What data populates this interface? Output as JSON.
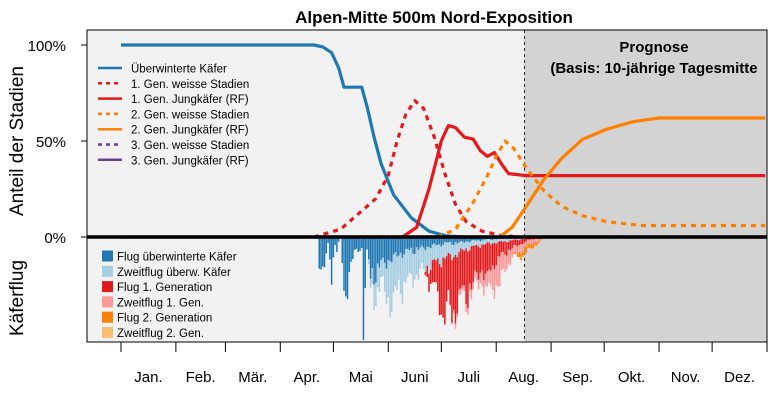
{
  "chart_data": {
    "type": "line",
    "title": "Alpen-Mitte 500m Nord-Exposition",
    "ylabel": "Anteil der Stadien",
    "ylabel_lower": "Käferflug",
    "yticks": [
      "100%",
      "50%",
      "0%"
    ],
    "ylim": [
      0,
      100
    ],
    "months": [
      "Jan.",
      "Feb.",
      "Mär.",
      "Apr.",
      "Mai",
      "Juni",
      "Juli",
      "Aug.",
      "Sep.",
      "Okt.",
      "Nov.",
      "Dez."
    ],
    "forecast_start_day": 229,
    "forecast_label_1": "Prognose",
    "forecast_label_2": "(Basis: 10-jährige Tagesmitte",
    "colors": {
      "overwintered": "#1f78b4",
      "overwintered_light": "#a6cee3",
      "gen1": "#e31a1c",
      "gen1_light": "#fb9a99",
      "gen2": "#ff7f00",
      "gen2_light": "#fdbf6f",
      "gen3": "#6a3d9a",
      "forecast_bg": "#d3d3d3",
      "plot_bg": "#f2f2f2"
    },
    "legend_lines": [
      {
        "label": "Überwinterte Käfer",
        "color": "#1f78b4",
        "dash": false
      },
      {
        "label": "1. Gen. weisse Stadien",
        "color": "#e31a1c",
        "dash": true
      },
      {
        "label": "1. Gen. Jungkäfer (RF)",
        "color": "#e31a1c",
        "dash": false
      },
      {
        "label": "2. Gen. weisse Stadien",
        "color": "#ff7f00",
        "dash": true
      },
      {
        "label": "2. Gen. Jungkäfer (RF)",
        "color": "#ff7f00",
        "dash": false
      },
      {
        "label": "3. Gen. weisse Stadien",
        "color": "#6a3d9a",
        "dash": true
      },
      {
        "label": "3. Gen. Jungkäfer (RF)",
        "color": "#6a3d9a",
        "dash": false
      }
    ],
    "legend_flight": [
      {
        "label": "Flug überwinterte Käfer",
        "color": "#1f78b4"
      },
      {
        "label": "Zweitflug überw. Käfer",
        "color": "#a6cee3"
      },
      {
        "label": "Flug 1. Generation",
        "color": "#e31a1c"
      },
      {
        "label": "Zweitflug 1. Gen.",
        "color": "#fb9a99"
      },
      {
        "label": "Flug 2. Generation",
        "color": "#ff7f00"
      },
      {
        "label": "Zweitflug 2. Gen.",
        "color": "#fdbf6f"
      }
    ],
    "series": [
      {
        "name": "Überwinterte Käfer",
        "dash": false,
        "color": "#1f78b4",
        "points": [
          [
            1,
            100
          ],
          [
            110,
            100
          ],
          [
            115,
            99
          ],
          [
            120,
            96
          ],
          [
            124,
            88
          ],
          [
            127,
            78
          ],
          [
            137,
            78
          ],
          [
            140,
            68
          ],
          [
            144,
            52
          ],
          [
            148,
            38
          ],
          [
            155,
            22
          ],
          [
            165,
            10
          ],
          [
            175,
            3
          ],
          [
            185,
            0.5
          ],
          [
            195,
            0
          ]
        ]
      },
      {
        "name": "1. Gen. weisse Stadien",
        "dash": true,
        "color": "#e31a1c",
        "points": [
          [
            110,
            0
          ],
          [
            125,
            4
          ],
          [
            135,
            12
          ],
          [
            145,
            20
          ],
          [
            152,
            32
          ],
          [
            157,
            50
          ],
          [
            162,
            64
          ],
          [
            167,
            71
          ],
          [
            172,
            67
          ],
          [
            178,
            52
          ],
          [
            184,
            33
          ],
          [
            190,
            17
          ],
          [
            196,
            8
          ],
          [
            205,
            3
          ],
          [
            215,
            1
          ],
          [
            225,
            0
          ]
        ]
      },
      {
        "name": "1. Gen. Jungkäfer (RF)",
        "dash": false,
        "color": "#e31a1c",
        "points": [
          [
            160,
            0
          ],
          [
            168,
            5
          ],
          [
            175,
            25
          ],
          [
            182,
            50
          ],
          [
            186,
            58
          ],
          [
            190,
            57
          ],
          [
            195,
            52
          ],
          [
            200,
            51
          ],
          [
            204,
            45
          ],
          [
            208,
            42
          ],
          [
            212,
            44
          ],
          [
            216,
            38
          ],
          [
            220,
            33
          ],
          [
            230,
            32
          ],
          [
            260,
            32
          ],
          [
            300,
            32
          ],
          [
            330,
            32
          ],
          [
            365,
            32
          ]
        ]
      },
      {
        "name": "2. Gen. weisse Stadien",
        "dash": true,
        "color": "#ff7f00",
        "points": [
          [
            180,
            0
          ],
          [
            190,
            4
          ],
          [
            200,
            18
          ],
          [
            208,
            32
          ],
          [
            213,
            42
          ],
          [
            218,
            50
          ],
          [
            223,
            46
          ],
          [
            230,
            36
          ],
          [
            240,
            24
          ],
          [
            250,
            16
          ],
          [
            262,
            11
          ],
          [
            275,
            8
          ],
          [
            295,
            6
          ],
          [
            365,
            6
          ]
        ]
      },
      {
        "name": "2. Gen. Jungkäfer (RF)",
        "dash": false,
        "color": "#ff7f00",
        "points": [
          [
            215,
            0
          ],
          [
            222,
            5
          ],
          [
            230,
            16
          ],
          [
            240,
            30
          ],
          [
            250,
            41
          ],
          [
            262,
            51
          ],
          [
            275,
            56
          ],
          [
            290,
            60
          ],
          [
            305,
            62
          ],
          [
            365,
            62
          ]
        ]
      },
      {
        "name": "3. Gen. Jungkäfer (RF)",
        "dash": false,
        "color": "#6a3d9a",
        "points": [
          [
            1,
            0
          ],
          [
            365,
            0
          ]
        ]
      }
    ],
    "flight_stacks": [
      {
        "color": "#1f78b4",
        "points": [
          [
            112,
            0
          ],
          [
            113,
            35
          ],
          [
            115,
            40
          ],
          [
            118,
            10
          ],
          [
            120,
            60
          ],
          [
            122,
            8
          ],
          [
            123,
            15
          ],
          [
            125,
            0
          ],
          [
            127,
            85
          ],
          [
            129,
            60
          ],
          [
            131,
            30
          ],
          [
            133,
            20
          ],
          [
            137,
            15
          ],
          [
            138,
            100
          ],
          [
            140,
            20
          ],
          [
            142,
            55
          ],
          [
            145,
            45
          ],
          [
            148,
            35
          ],
          [
            152,
            30
          ],
          [
            156,
            25
          ],
          [
            160,
            20
          ],
          [
            165,
            18
          ],
          [
            170,
            15
          ],
          [
            175,
            12
          ],
          [
            180,
            10
          ],
          [
            185,
            8
          ],
          [
            190,
            8
          ],
          [
            195,
            6
          ],
          [
            200,
            5
          ],
          [
            205,
            4
          ],
          [
            210,
            3
          ],
          [
            220,
            2
          ],
          [
            230,
            1
          ]
        ]
      },
      {
        "color": "#a6cee3",
        "points": [
          [
            140,
            0
          ],
          [
            142,
            15
          ],
          [
            145,
            30
          ],
          [
            148,
            25
          ],
          [
            150,
            35
          ],
          [
            152,
            50
          ],
          [
            155,
            60
          ],
          [
            158,
            40
          ],
          [
            160,
            45
          ],
          [
            165,
            35
          ],
          [
            170,
            30
          ],
          [
            175,
            25
          ],
          [
            180,
            22
          ],
          [
            185,
            18
          ],
          [
            190,
            15
          ],
          [
            195,
            10
          ],
          [
            200,
            8
          ],
          [
            205,
            6
          ],
          [
            210,
            5
          ],
          [
            220,
            3
          ],
          [
            230,
            1
          ],
          [
            235,
            0
          ]
        ]
      },
      {
        "color": "#e31a1c",
        "points": [
          [
            172,
            0
          ],
          [
            175,
            18
          ],
          [
            178,
            30
          ],
          [
            180,
            45
          ],
          [
            183,
            70
          ],
          [
            186,
            60
          ],
          [
            188,
            80
          ],
          [
            190,
            65
          ],
          [
            193,
            55
          ],
          [
            196,
            60
          ],
          [
            200,
            45
          ],
          [
            205,
            30
          ],
          [
            208,
            45
          ],
          [
            212,
            25
          ],
          [
            218,
            15
          ],
          [
            222,
            10
          ],
          [
            228,
            5
          ],
          [
            235,
            2
          ],
          [
            240,
            0
          ]
        ]
      },
      {
        "color": "#fb9a99",
        "points": [
          [
            185,
            0
          ],
          [
            190,
            5
          ],
          [
            195,
            8
          ],
          [
            200,
            10
          ],
          [
            205,
            15
          ],
          [
            208,
            20
          ],
          [
            212,
            30
          ],
          [
            215,
            35
          ],
          [
            218,
            20
          ],
          [
            222,
            12
          ],
          [
            228,
            8
          ],
          [
            235,
            5
          ],
          [
            240,
            2
          ],
          [
            245,
            0
          ]
        ]
      },
      {
        "color": "#ff7f00",
        "points": [
          [
            222,
            0
          ],
          [
            225,
            5
          ],
          [
            228,
            8
          ],
          [
            232,
            6
          ],
          [
            236,
            3
          ],
          [
            240,
            0
          ]
        ]
      },
      {
        "color": "#fdbf6f",
        "points": [
          [
            230,
            0
          ],
          [
            232,
            1
          ],
          [
            236,
            1
          ],
          [
            240,
            0
          ]
        ]
      }
    ]
  }
}
